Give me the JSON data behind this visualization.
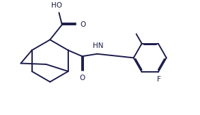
{
  "bg_color": "#ffffff",
  "line_color": "#1a1a4a",
  "line_width": 1.4,
  "font_size": 7.5,
  "fig_width": 2.93,
  "fig_height": 1.68,
  "dpi": 100,
  "xlim": [
    0,
    10
  ],
  "ylim": [
    0,
    5.73
  ]
}
